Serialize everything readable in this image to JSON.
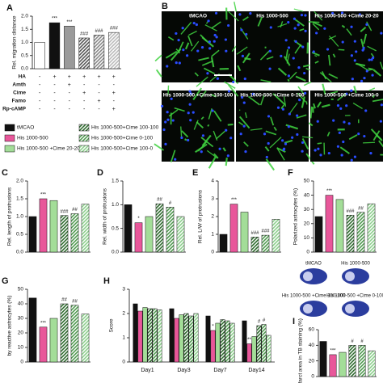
{
  "legend": [
    {
      "name": "tMCAO",
      "color": "#111111",
      "hatch": false
    },
    {
      "name": "His 1000-500",
      "color": "#e8579a",
      "hatch": false
    },
    {
      "name": "His 1000-500 +Cime 20-20",
      "color": "#a3dd98",
      "hatch": false
    },
    {
      "name": "His 1000-500+Cime 100-100",
      "color": "#2e6b2e",
      "hatch": true
    },
    {
      "name": "His 1000-500+Cime 0-100",
      "color": "#4f9a4f",
      "hatch": true
    },
    {
      "name": "His 1000-500+Cime 100-0",
      "color": "#8ccf8c",
      "hatch": true
    }
  ],
  "images": {
    "panel": "B",
    "labels": [
      "tMCAO",
      "His 1000-500",
      "His 1000-500 +Cime 20-20",
      "His 1000-500 +Cime 100-100",
      "His 1000-500 +Cime 0-100",
      "His 1000-500 +Cime 100-0"
    ]
  },
  "brains": {
    "labels": [
      "tMCAO",
      "His 1000-500",
      "His 1000-500 +Cime 100-100",
      "His 1000-500 +Cime 0-100"
    ]
  },
  "chart_data": [
    {
      "type": "bar",
      "panel": "A",
      "ylabel": "Rel. migration distance",
      "values": [
        1.0,
        1.75,
        1.62,
        1.17,
        1.28,
        1.38
      ],
      "significance": [
        null,
        "***",
        "***",
        "###",
        "###",
        "###"
      ],
      "colors": [
        "#ffffff",
        "#111111",
        "#9a9a9a",
        "#555555",
        "#888888",
        "#bbbbbb"
      ],
      "hatch": [
        false,
        false,
        false,
        true,
        true,
        true
      ],
      "ylim": [
        0,
        2
      ],
      "yticks": [
        {
          "value": 0,
          "label": "0.0"
        },
        0.5,
        {
          "value": 1,
          "label": "1.0"
        },
        1.5,
        {
          "value": 2,
          "label": "2.0"
        }
      ],
      "table": [
        {
          "label": "HA",
          "signs": [
            "-",
            "+",
            "+",
            "+",
            "+",
            "+"
          ]
        },
        {
          "label": "Amth",
          "signs": [
            "-",
            "-",
            "+",
            "-",
            "-",
            "-"
          ]
        },
        {
          "label": "Cime",
          "signs": [
            "-",
            "-",
            "-",
            "+",
            "-",
            "+"
          ]
        },
        {
          "label": "Famo",
          "signs": [
            "-",
            "-",
            "-",
            "-",
            "+",
            "-"
          ]
        },
        {
          "label": "Rp-cAMP",
          "signs": [
            "-",
            "-",
            "-",
            "-",
            "-",
            "+"
          ]
        }
      ]
    },
    {
      "type": "bar",
      "panel": "C",
      "ylabel": "Rel. length of protrusions",
      "values": [
        1.0,
        1.5,
        1.45,
        1.03,
        1.08,
        1.35
      ],
      "significance": [
        null,
        "***",
        null,
        "###",
        "##",
        null
      ],
      "ylim": [
        0,
        2
      ],
      "yticks": [
        {
          "value": 0,
          "label": "0.0"
        },
        0.5,
        {
          "value": 1,
          "label": "1.0"
        },
        1.5,
        {
          "value": 2,
          "label": "2.0"
        }
      ]
    },
    {
      "type": "bar",
      "panel": "D",
      "ylabel": "Rel. width of protrusions",
      "values": [
        1.0,
        0.62,
        0.75,
        1.02,
        0.95,
        0.75
      ],
      "significance": [
        null,
        "*",
        null,
        "##",
        "#",
        null
      ],
      "ylim": [
        0,
        1.5
      ],
      "yticks": [
        {
          "value": 0,
          "label": "0.0"
        },
        0.5,
        {
          "value": 1,
          "label": "1.0"
        },
        1.5
      ]
    },
    {
      "type": "bar",
      "panel": "E",
      "ylabel": "Rel. L/W of protrusions",
      "values": [
        1.0,
        2.7,
        2.25,
        0.85,
        0.95,
        1.85
      ],
      "significance": [
        null,
        "***",
        null,
        "###",
        "###",
        null
      ],
      "ylim": [
        0,
        4
      ],
      "yticks": [
        0,
        1,
        2,
        3,
        4
      ]
    },
    {
      "type": "bar",
      "panel": "F",
      "ylabel": "Polarized astrocytes (%)",
      "values": [
        25,
        40,
        37,
        26,
        28,
        34
      ],
      "significance": [
        null,
        "***",
        null,
        "###",
        "##",
        null
      ],
      "ylim": [
        0,
        50
      ],
      "yticks": [
        0,
        10,
        20,
        30,
        40,
        50
      ]
    },
    {
      "type": "bar",
      "panel": "G",
      "ylabel": "by reactive astrocytes (%)",
      "values": [
        44,
        24,
        30,
        40,
        39,
        33
      ],
      "significance": [
        null,
        "***",
        null,
        "##",
        "##",
        null
      ],
      "ylim": [
        0,
        50
      ],
      "yticks": [
        0,
        10,
        20,
        30,
        40,
        50
      ]
    },
    {
      "type": "grouped",
      "panel": "H",
      "ylabel": "Score",
      "categories": [
        "Day1",
        "Day3",
        "Day7",
        "Day14"
      ],
      "values": [
        [
          2.4,
          2.1,
          2.25,
          2.2,
          2.2,
          2.15
        ],
        [
          2.2,
          1.8,
          1.95,
          2.0,
          1.9,
          2.0
        ],
        [
          1.9,
          1.3,
          1.6,
          1.75,
          1.7,
          1.6
        ],
        [
          1.7,
          0.75,
          1.05,
          1.5,
          1.55,
          1.1
        ]
      ],
      "significance": [
        [
          null,
          null,
          null,
          null,
          null,
          null
        ],
        [
          null,
          null,
          null,
          null,
          null,
          null
        ],
        [
          null,
          "*",
          null,
          null,
          null,
          null
        ],
        [
          null,
          "**",
          null,
          "#",
          "#",
          null
        ]
      ],
      "ylim": [
        0,
        3
      ],
      "yticks": [
        0,
        1,
        2,
        3
      ]
    },
    {
      "type": "bar",
      "panel": "I",
      "ylabel": "Infarct area in TB staining (%)",
      "values": [
        45,
        28,
        31,
        40,
        40,
        33
      ],
      "significance": [
        null,
        "***",
        null,
        "#",
        "#",
        null
      ],
      "ylim": [
        0,
        60
      ],
      "yticks": [
        0,
        20,
        40,
        60
      ]
    }
  ]
}
